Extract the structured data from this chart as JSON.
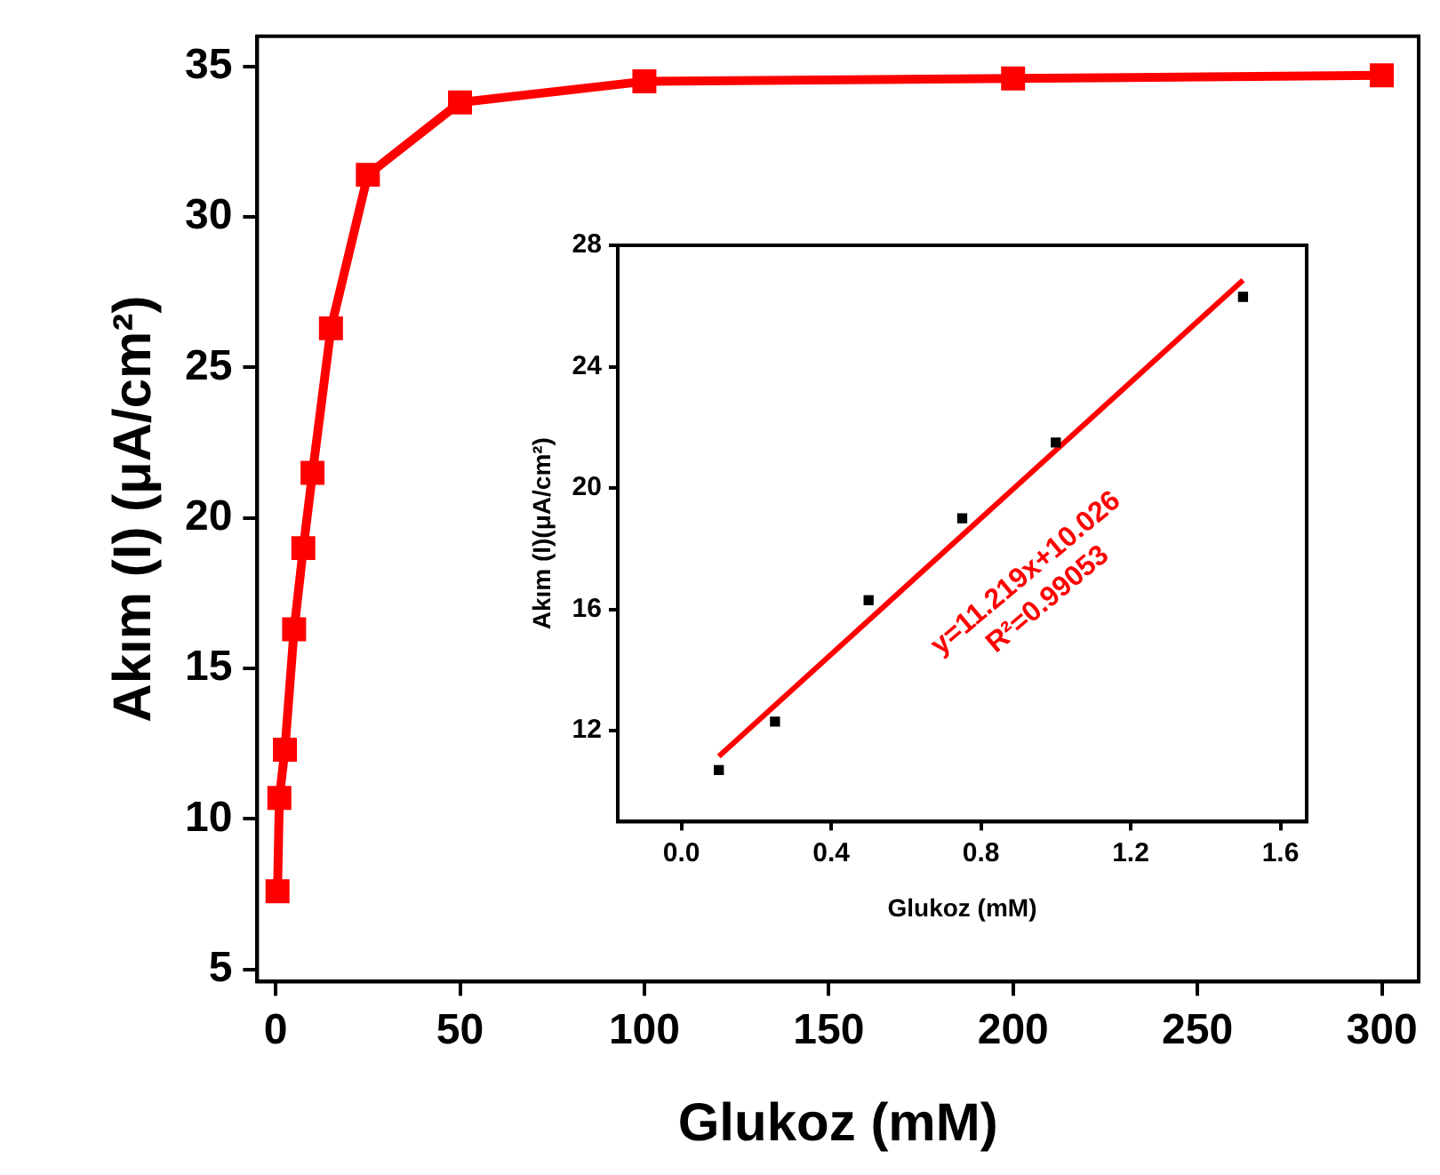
{
  "chart_data": [
    {
      "type": "line",
      "xlabel": "Glukoz (mM)",
      "ylabel": "Akım (I) (μA/cm²)",
      "x": [
        0.5,
        1,
        2.5,
        5,
        7.5,
        10,
        15,
        25,
        50,
        100,
        200,
        300
      ],
      "values": [
        7.6,
        10.7,
        12.3,
        16.3,
        19.0,
        21.5,
        26.3,
        31.4,
        33.8,
        34.5,
        34.6,
        34.7
      ],
      "color": "#ff0000",
      "marker": "square",
      "xlim": [
        -5,
        310
      ],
      "ylim": [
        4.6,
        36
      ],
      "xticks": [
        0,
        50,
        100,
        150,
        200,
        250,
        300
      ],
      "yticks": [
        5,
        10,
        15,
        20,
        25,
        30,
        35
      ],
      "grid": false
    },
    {
      "type": "scatter",
      "xlabel": "Glukoz (mM)",
      "ylabel": "Akım (I)(μA/cm²)",
      "series": [
        {
          "x": [
            0.1,
            0.25,
            0.5,
            0.75,
            1,
            1.5
          ],
          "values": [
            10.7,
            12.3,
            16.3,
            19.0,
            21.5,
            26.3
          ],
          "color": "#000000",
          "marker": "square"
        },
        {
          "type": "line",
          "x": [
            0.1,
            1.5
          ],
          "values": [
            11.15,
            26.85
          ],
          "color": "#ff0000",
          "marker": "none"
        }
      ],
      "annotations": [
        "y=11.219x+10.026",
        "R²=0.99053"
      ],
      "xlim": [
        -0.17,
        1.67
      ],
      "ylim": [
        9,
        28
      ],
      "xticks": [
        {
          "value": 0,
          "label": "0.0"
        },
        0.4,
        0.8,
        1.2,
        1.6
      ],
      "yticks": [
        12,
        16,
        20,
        24,
        28
      ],
      "grid": false
    }
  ]
}
